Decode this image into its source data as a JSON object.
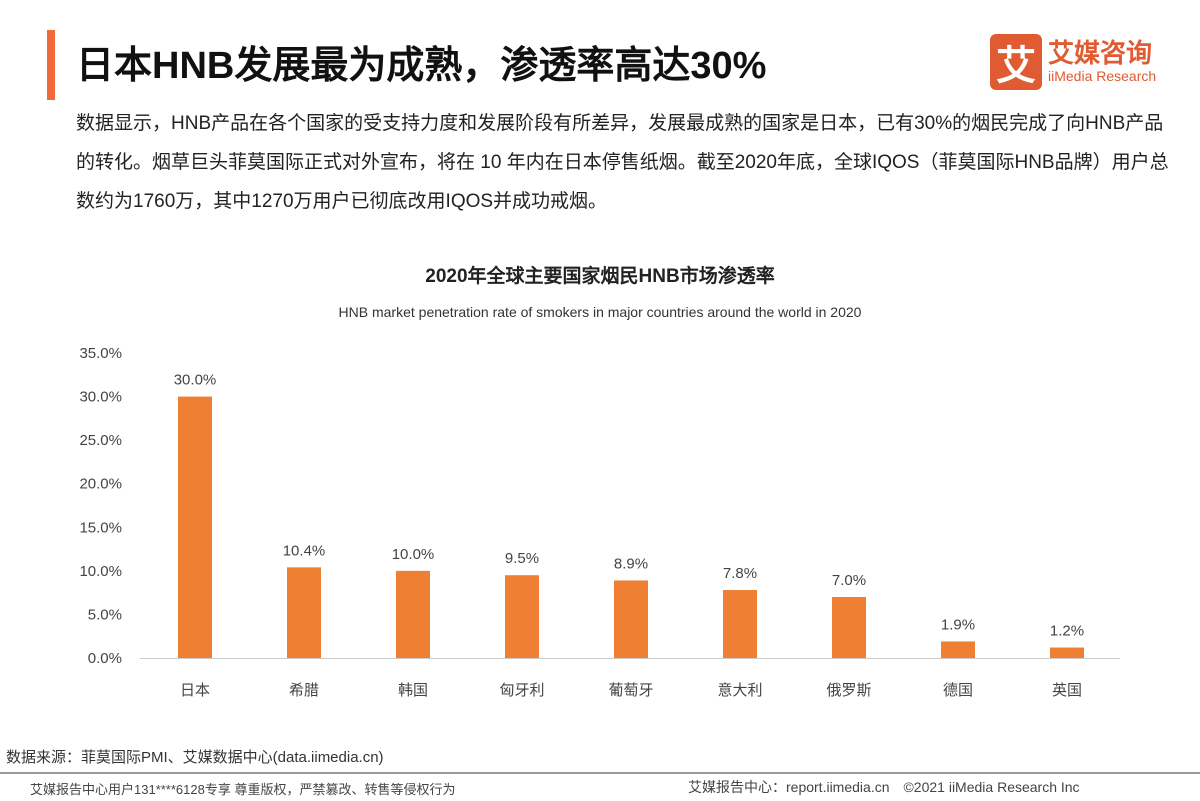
{
  "header": {
    "title": "日本HNB发展最为成熟，渗透率高达30%",
    "logo_mark": "艾",
    "logo_cn": "艾媒咨询",
    "logo_en": "iiMedia Research"
  },
  "description": "数据显示，HNB产品在各个国家的受支持力度和发展阶段有所差异，发展最成熟的国家是日本，已有30%的烟民完成了向HNB产品的转化。烟草巨头菲莫国际正式对外宣布，将在 10 年内在日本停售纸烟。截至2020年底，全球IQOS（菲莫国际HNB品牌）用户总数约为1760万，其中1270万用户已彻底改用IQOS并成功戒烟。",
  "chart_data": {
    "type": "bar",
    "title": "2020年全球主要国家烟民HNB市场渗透率",
    "subtitle": "HNB market penetration rate of smokers in major countries around the world in 2020",
    "categories": [
      "日本",
      "希腊",
      "韩国",
      "匈牙利",
      "葡萄牙",
      "意大利",
      "俄罗斯",
      "德国",
      "英国"
    ],
    "values": [
      30.0,
      10.4,
      10.0,
      9.5,
      8.9,
      7.8,
      7.0,
      1.9,
      1.2
    ],
    "labels": [
      "30.0%",
      "10.4%",
      "10.0%",
      "9.5%",
      "8.9%",
      "7.8%",
      "7.0%",
      "1.9%",
      "1.2%"
    ],
    "yticks": [
      "0.0%",
      "5.0%",
      "10.0%",
      "15.0%",
      "20.0%",
      "25.0%",
      "30.0%",
      "35.0%"
    ],
    "ylim": [
      0,
      35
    ],
    "grid": false,
    "color": "#ee7f33"
  },
  "footer": {
    "source": "数据来源：菲莫国际PMI、艾媒数据中心(data.iimedia.cn)",
    "left": "艾媒报告中心用户131****6128专享 尊重版权，严禁篡改、转售等侵权行为",
    "right": "艾媒报告中心：report.iimedia.cn　©2021  iiMedia Research  Inc"
  }
}
